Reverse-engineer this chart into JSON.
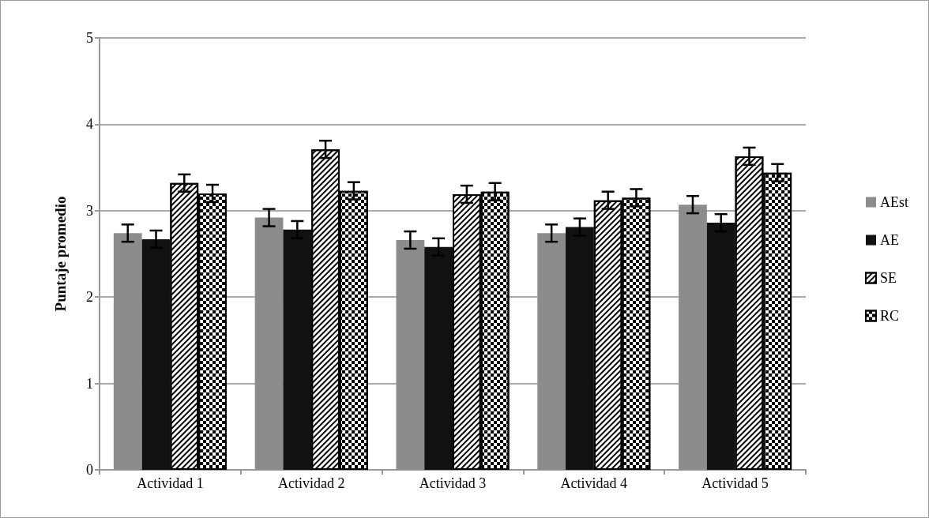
{
  "chart_data": {
    "type": "bar",
    "ylabel": "Puntaje promedio",
    "categories": [
      "Actividad 1",
      "Actividad 2",
      "Actividad 3",
      "Actividad 4",
      "Actividad 5"
    ],
    "series": [
      {
        "name": "AEst",
        "color": "#8c8c8c",
        "values": [
          2.74,
          2.92,
          2.66,
          2.74,
          3.07
        ],
        "errors": [
          0.1,
          0.1,
          0.1,
          0.1,
          0.1
        ]
      },
      {
        "name": "AE",
        "color": "#111111",
        "values": [
          2.67,
          2.78,
          2.58,
          2.81,
          2.86
        ],
        "errors": [
          0.1,
          0.1,
          0.1,
          0.1,
          0.1
        ]
      },
      {
        "name": "SE",
        "color": "#ffffff",
        "values": [
          3.32,
          3.71,
          3.19,
          3.12,
          3.63
        ],
        "errors": [
          0.1,
          0.1,
          0.1,
          0.1,
          0.1
        ]
      },
      {
        "name": "RC",
        "color": "#ffffff",
        "values": [
          3.2,
          3.23,
          3.22,
          3.15,
          3.44
        ],
        "errors": [
          0.1,
          0.1,
          0.1,
          0.1,
          0.1
        ]
      }
    ],
    "ylim": [
      0,
      5
    ],
    "yticks": [
      0,
      1,
      2,
      3,
      4,
      5
    ],
    "grid": "y",
    "legend": "right"
  }
}
